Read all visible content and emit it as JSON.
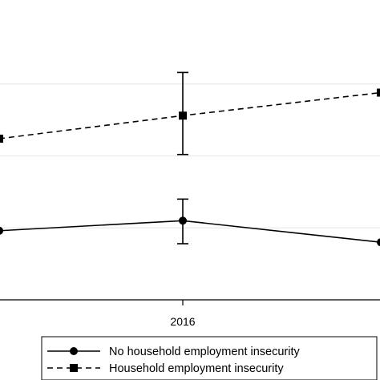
{
  "chart_data": {
    "type": "line",
    "title": "",
    "xlabel": "",
    "ylabel": "",
    "x_tick_labels": [
      "2016"
    ],
    "grid": true,
    "legend_position": "bottom",
    "series": [
      {
        "name": "No household employment insecurity",
        "marker": "circle",
        "line_style": "solid",
        "points": [
          {
            "x": 2015,
            "y": 2.4
          },
          {
            "x": 2016,
            "y": 2.75,
            "ci_low": 1.95,
            "ci_high": 3.5
          },
          {
            "x": 2017,
            "y": 2.0
          }
        ]
      },
      {
        "name": "Household employment insecurity",
        "marker": "square",
        "line_style": "dashed",
        "points": [
          {
            "x": 2015,
            "y": 5.6
          },
          {
            "x": 2016,
            "y": 6.4,
            "ci_low": 5.05,
            "ci_high": 7.9
          },
          {
            "x": 2017,
            "y": 7.2
          }
        ]
      }
    ]
  }
}
